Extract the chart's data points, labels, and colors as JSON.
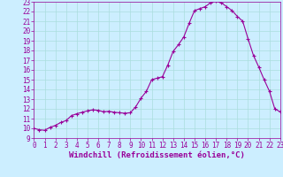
{
  "x": [
    0,
    0.5,
    1,
    1.5,
    2,
    2.5,
    3,
    3.5,
    4,
    4.5,
    5,
    5.5,
    6,
    6.5,
    7,
    7.5,
    8,
    8.5,
    9,
    9.5,
    10,
    10.5,
    11,
    11.5,
    12,
    12.5,
    13,
    13.5,
    14,
    14.5,
    15,
    15.5,
    16,
    16.5,
    17,
    17.5,
    18,
    18.5,
    19,
    19.5,
    20,
    20.5,
    21,
    21.5,
    22,
    22.5,
    23
  ],
  "y": [
    10.0,
    9.85,
    9.8,
    10.1,
    10.3,
    10.6,
    10.8,
    11.3,
    11.5,
    11.65,
    11.8,
    11.9,
    11.85,
    11.7,
    11.75,
    11.65,
    11.6,
    11.55,
    11.6,
    12.2,
    13.1,
    13.8,
    15.0,
    15.15,
    15.3,
    16.5,
    17.9,
    18.6,
    19.4,
    20.8,
    22.1,
    22.3,
    22.5,
    22.9,
    23.1,
    22.9,
    22.5,
    22.1,
    21.5,
    21.0,
    19.2,
    17.5,
    16.3,
    15.0,
    13.8,
    12.0,
    11.7
  ],
  "line_color": "#990099",
  "marker": "+",
  "marker_size": 3,
  "background_color": "#cceeff",
  "grid_color": "#aadddd",
  "xlabel": "Windchill (Refroidissement éolien,°C)",
  "xlabel_fontsize": 6.5,
  "tick_fontsize": 5.5,
  "xlim": [
    0,
    23
  ],
  "ylim": [
    9,
    23
  ],
  "yticks": [
    9,
    10,
    11,
    12,
    13,
    14,
    15,
    16,
    17,
    18,
    19,
    20,
    21,
    22,
    23
  ],
  "xticks": [
    0,
    1,
    2,
    3,
    4,
    5,
    6,
    7,
    8,
    9,
    10,
    11,
    12,
    13,
    14,
    15,
    16,
    17,
    18,
    19,
    20,
    21,
    22,
    23
  ]
}
